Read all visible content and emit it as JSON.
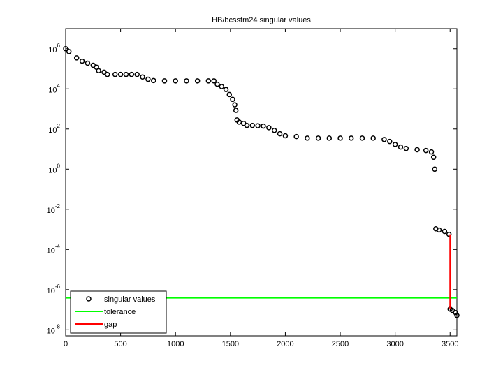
{
  "chart_data": {
    "type": "scatter",
    "title": "HB/bcsstm24 singular values",
    "xlim": [
      0,
      3562
    ],
    "xticks": [
      0,
      500,
      1000,
      1500,
      2000,
      2500,
      3000,
      3500
    ],
    "ylim": [
      5e-09,
      10000000.0
    ],
    "log_y": true,
    "yticks": [
      {
        "value": 1e-08,
        "label": "10^-8"
      },
      {
        "value": 1e-06,
        "label": "10^-6"
      },
      {
        "value": 0.0001,
        "label": "10^-4"
      },
      {
        "value": 0.01,
        "label": "10^-2"
      },
      {
        "value": 1,
        "label": "10^0"
      },
      {
        "value": 100,
        "label": "10^2"
      },
      {
        "value": 10000,
        "label": "10^4"
      },
      {
        "value": 1000000,
        "label": "10^6"
      }
    ],
    "grid": false,
    "legend": "lower left",
    "series": [
      {
        "name": "singular values",
        "color": "#000000",
        "mode": "markers",
        "x": [
          0,
          30,
          100,
          150,
          200,
          250,
          280,
          300,
          350,
          380,
          450,
          500,
          550,
          600,
          650,
          700,
          750,
          800,
          900,
          1000,
          1100,
          1200,
          1300,
          1350,
          1380,
          1420,
          1460,
          1490,
          1520,
          1540,
          1550,
          1560,
          1580,
          1620,
          1650,
          1700,
          1750,
          1800,
          1850,
          1900,
          1950,
          2000,
          2100,
          2200,
          2300,
          2400,
          2500,
          2600,
          2700,
          2800,
          2900,
          2950,
          3000,
          3050,
          3100,
          3200,
          3280,
          3330,
          3350,
          3360,
          3370,
          3400,
          3450,
          3490,
          3500,
          3520,
          3550,
          3562
        ],
        "values": [
          1000000,
          720000,
          350000,
          240000,
          190000,
          150000,
          120000,
          80000,
          68000,
          52000,
          52000,
          52000,
          52000,
          52000,
          52000,
          39000,
          30000,
          26000,
          25000,
          25000,
          25000,
          25000,
          25000,
          25000,
          17000,
          13000,
          9300,
          5200,
          3000,
          1600,
          850,
          280,
          220,
          190,
          150,
          150,
          145,
          140,
          117,
          85,
          58,
          46,
          42,
          35,
          35,
          35,
          35,
          35,
          35,
          35,
          30,
          24,
          17,
          12.6,
          10.7,
          9.3,
          8.5,
          7.2,
          3.9,
          1,
          0.00107,
          0.00093,
          0.00079,
          0.00057,
          1.07e-07,
          9.3e-08,
          7.2e-08,
          5.2e-08
        ]
      },
      {
        "name": "tolerance",
        "color": "#00ff00",
        "mode": "lines",
        "x": [
          0,
          3562
        ],
        "values": [
          3.9e-07,
          3.9e-07
        ]
      },
      {
        "name": "gap",
        "color": "#ff0000",
        "mode": "lines",
        "x": [
          3500,
          3500
        ],
        "values": [
          0.00057,
          1.07e-07
        ]
      }
    ]
  }
}
